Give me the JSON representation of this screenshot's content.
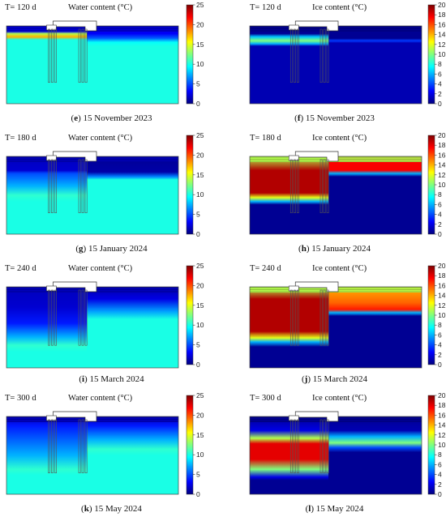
{
  "colors": {
    "jet": [
      "#00007f",
      "#0000ff",
      "#007fff",
      "#00ffff",
      "#7fff7f",
      "#ffff00",
      "#ff7f00",
      "#ff0000",
      "#7f0000"
    ],
    "water_body": "#83f07a",
    "structure": "#ffffff"
  },
  "panels": [
    {
      "id": "e",
      "time": "T= 120 d",
      "title": "Water content (°C)",
      "letter": "e",
      "date": "15 November 2023",
      "colorbar": {
        "min": 0,
        "max": 25,
        "ticks": [
          "25",
          "20",
          "15",
          "10",
          "5",
          "0"
        ]
      },
      "field": {
        "left": [
          {
            "d": 0.0,
            "v": 0.08
          },
          {
            "d": 0.07,
            "v": 0.12
          },
          {
            "d": 0.1,
            "v": 0.55
          },
          {
            "d": 0.14,
            "v": 0.7
          },
          {
            "d": 0.18,
            "v": 0.4
          }
        ],
        "right": [
          {
            "d": 0.0,
            "v": 0.08
          },
          {
            "d": 0.1,
            "v": 0.12
          },
          {
            "d": 0.16,
            "v": 0.22
          },
          {
            "d": 0.21,
            "v": 0.38
          },
          {
            "d": 0.26,
            "v": 0.4
          }
        ]
      }
    },
    {
      "id": "f",
      "time": "T= 120 d",
      "title": "Ice content (°C)",
      "letter": "f",
      "date": "15 November 2023",
      "colorbar": {
        "min": 0,
        "max": 20,
        "ticks": [
          "20",
          "18",
          "16",
          "14",
          "12",
          "10",
          "8",
          "6",
          "4",
          "2",
          "0"
        ]
      },
      "field": {
        "left": [
          {
            "d": 0.0,
            "v": 0.02
          },
          {
            "d": 0.1,
            "v": 0.02
          },
          {
            "d": 0.14,
            "v": 0.32
          },
          {
            "d": 0.19,
            "v": 0.5
          },
          {
            "d": 0.23,
            "v": 0.3
          },
          {
            "d": 0.26,
            "v": 0.05
          }
        ],
        "right": [
          {
            "d": 0.0,
            "v": 0.02
          },
          {
            "d": 0.16,
            "v": 0.02
          },
          {
            "d": 0.19,
            "v": 0.18
          },
          {
            "d": 0.22,
            "v": 0.05
          }
        ]
      }
    },
    {
      "id": "g",
      "time": "T= 180 d",
      "title": "Water content (°C)",
      "letter": "g",
      "date": "15 January 2024",
      "colorbar": {
        "min": 0,
        "max": 25,
        "ticks": [
          "25",
          "20",
          "15",
          "10",
          "5",
          "0"
        ]
      },
      "field": {
        "left": [
          {
            "d": 0.0,
            "v": 0.06
          },
          {
            "d": 0.18,
            "v": 0.08
          },
          {
            "d": 0.22,
            "v": 0.2
          },
          {
            "d": 0.38,
            "v": 0.3
          },
          {
            "d": 0.5,
            "v": 0.42
          },
          {
            "d": 0.58,
            "v": 0.4
          }
        ],
        "right": [
          {
            "d": 0.0,
            "v": 0.02
          },
          {
            "d": 0.2,
            "v": 0.04
          },
          {
            "d": 0.26,
            "v": 0.25
          },
          {
            "d": 0.3,
            "v": 0.4
          }
        ]
      }
    },
    {
      "id": "h",
      "time": "T= 180 d",
      "title": "Ice content (°C)",
      "letter": "h",
      "date": "15 January 2024",
      "colorbar": {
        "min": 0,
        "max": 20,
        "ticks": [
          "20",
          "18",
          "16",
          "14",
          "12",
          "10",
          "8",
          "6",
          "4",
          "2",
          "0"
        ]
      },
      "field": {
        "left": [
          {
            "d": 0.0,
            "v": 0.55
          },
          {
            "d": 0.18,
            "v": 0.95
          },
          {
            "d": 0.47,
            "v": 0.95
          },
          {
            "d": 0.53,
            "v": 0.6
          },
          {
            "d": 0.58,
            "v": 0.3
          },
          {
            "d": 0.62,
            "v": 0.02
          }
        ],
        "right": [
          {
            "d": 0.0,
            "v": 0.88
          },
          {
            "d": 0.18,
            "v": 0.88
          },
          {
            "d": 0.22,
            "v": 0.3
          },
          {
            "d": 0.26,
            "v": 0.02
          }
        ]
      }
    },
    {
      "id": "i",
      "time": "T= 240 d",
      "title": "Water content (°C)",
      "letter": "i",
      "date": "15 March 2024",
      "colorbar": {
        "min": 0,
        "max": 25,
        "ticks": [
          "25",
          "20",
          "15",
          "10",
          "5",
          "0"
        ]
      },
      "field": {
        "left": [
          {
            "d": 0.0,
            "v": 0.06
          },
          {
            "d": 0.25,
            "v": 0.08
          },
          {
            "d": 0.45,
            "v": 0.15
          },
          {
            "d": 0.62,
            "v": 0.3
          },
          {
            "d": 0.72,
            "v": 0.42
          },
          {
            "d": 0.8,
            "v": 0.4
          }
        ],
        "right": [
          {
            "d": 0.0,
            "v": 0.04
          },
          {
            "d": 0.15,
            "v": 0.1
          },
          {
            "d": 0.3,
            "v": 0.28
          },
          {
            "d": 0.4,
            "v": 0.4
          }
        ]
      }
    },
    {
      "id": "j",
      "time": "T= 240 d",
      "title": "Ice content (°C)",
      "letter": "j",
      "date": "15 March 2024",
      "colorbar": {
        "min": 0,
        "max": 20,
        "ticks": [
          "20",
          "18",
          "16",
          "14",
          "12",
          "10",
          "8",
          "6",
          "4",
          "2",
          "0"
        ]
      },
      "field": {
        "left": [
          {
            "d": 0.0,
            "v": 0.55
          },
          {
            "d": 0.15,
            "v": 0.95
          },
          {
            "d": 0.55,
            "v": 0.95
          },
          {
            "d": 0.63,
            "v": 0.6
          },
          {
            "d": 0.68,
            "v": 0.3
          },
          {
            "d": 0.74,
            "v": 0.02
          }
        ],
        "right": [
          {
            "d": 0.0,
            "v": 0.7
          },
          {
            "d": 0.2,
            "v": 0.78
          },
          {
            "d": 0.28,
            "v": 0.85
          },
          {
            "d": 0.32,
            "v": 0.3
          },
          {
            "d": 0.36,
            "v": 0.02
          }
        ]
      }
    },
    {
      "id": "k",
      "time": "T= 300 d",
      "title": "Water content (°C)",
      "letter": "k",
      "date": "15 May 2024",
      "colorbar": {
        "min": 0,
        "max": 25,
        "ticks": [
          "25",
          "20",
          "15",
          "10",
          "5",
          "0"
        ]
      },
      "field": {
        "left": [
          {
            "d": 0.0,
            "v": 0.06
          },
          {
            "d": 0.12,
            "v": 0.15
          },
          {
            "d": 0.3,
            "v": 0.22
          },
          {
            "d": 0.5,
            "v": 0.3
          },
          {
            "d": 0.68,
            "v": 0.42
          },
          {
            "d": 0.75,
            "v": 0.4
          }
        ],
        "right": [
          {
            "d": 0.0,
            "v": 0.06
          },
          {
            "d": 0.12,
            "v": 0.15
          },
          {
            "d": 0.3,
            "v": 0.3
          },
          {
            "d": 0.42,
            "v": 0.42
          },
          {
            "d": 0.5,
            "v": 0.4
          }
        ]
      }
    },
    {
      "id": "l",
      "time": "T= 300 d",
      "title": "Ice content (°C)",
      "letter": "l",
      "date": "15 May 2024",
      "colorbar": {
        "min": 0,
        "max": 20,
        "ticks": [
          "20",
          "18",
          "16",
          "14",
          "12",
          "10",
          "8",
          "6",
          "4",
          "2",
          "0"
        ]
      },
      "field": {
        "left": [
          {
            "d": 0.0,
            "v": 0.02
          },
          {
            "d": 0.18,
            "v": 0.1
          },
          {
            "d": 0.28,
            "v": 0.55
          },
          {
            "d": 0.35,
            "v": 0.9
          },
          {
            "d": 0.55,
            "v": 0.9
          },
          {
            "d": 0.68,
            "v": 0.5
          },
          {
            "d": 0.78,
            "v": 0.1
          },
          {
            "d": 0.82,
            "v": 0.02
          }
        ],
        "right": [
          {
            "d": 0.0,
            "v": 0.02
          },
          {
            "d": 0.18,
            "v": 0.05
          },
          {
            "d": 0.26,
            "v": 0.3
          },
          {
            "d": 0.34,
            "v": 0.5
          },
          {
            "d": 0.4,
            "v": 0.2
          },
          {
            "d": 0.46,
            "v": 0.02
          }
        ]
      }
    }
  ]
}
